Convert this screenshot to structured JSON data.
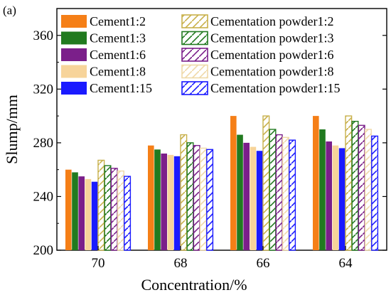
{
  "chart_data": {
    "type": "bar",
    "panel_label": "(a)",
    "xlabel": "Concentration/%",
    "ylabel": "Slump/mm",
    "categories": [
      "70",
      "68",
      "66",
      "64"
    ],
    "yticks": [
      200,
      240,
      280,
      320,
      360
    ],
    "ylim": [
      200,
      380
    ],
    "grid": false,
    "legend_position": "top, inside plot (two columns)",
    "series": [
      {
        "name": "Cement1:2",
        "color": "#f57f17",
        "style": "solid",
        "values": [
          260,
          278,
          300,
          300
        ]
      },
      {
        "name": "Cement1:3",
        "color": "#217a1f",
        "style": "solid",
        "values": [
          258,
          275,
          286,
          290
        ]
      },
      {
        "name": "Cement1:6",
        "color": "#7b1f8a",
        "style": "solid",
        "values": [
          255,
          272,
          280,
          281
        ]
      },
      {
        "name": "Cement1:8",
        "color": "#f7d49a",
        "style": "solid",
        "values": [
          253,
          271,
          277,
          278
        ]
      },
      {
        "name": "Cement1:15",
        "color": "#1a1aff",
        "style": "solid",
        "values": [
          251,
          270,
          274,
          276
        ]
      },
      {
        "name": "Cementation powder1:2",
        "color": "#c8b04a",
        "style": "hatched",
        "values": [
          267,
          286,
          300,
          300
        ]
      },
      {
        "name": "Cementation powder1:3",
        "color": "#217a1f",
        "style": "hatched",
        "values": [
          263,
          280,
          290,
          296
        ]
      },
      {
        "name": "Cementation powder1:6",
        "color": "#7b1f8a",
        "style": "hatched",
        "values": [
          261,
          278,
          286,
          293
        ]
      },
      {
        "name": "Cementation powder1:8",
        "color": "#efd9a8",
        "style": "hatched",
        "values": [
          259,
          276,
          284,
          290
        ]
      },
      {
        "name": "Cementation powder1:15",
        "color": "#1a1aff",
        "style": "hatched",
        "values": [
          255,
          275,
          282,
          285
        ]
      }
    ]
  }
}
